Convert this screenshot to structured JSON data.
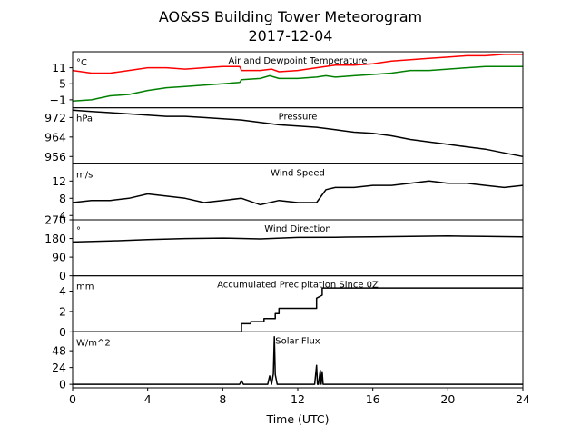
{
  "figure": {
    "title_line1": "AO&SS Building Tower Meteorogram",
    "title_line2": "2017-12-04",
    "xlabel": "Time (UTC)",
    "x_ticks": [
      "0",
      "4",
      "8",
      "12",
      "16",
      "20",
      "24"
    ]
  },
  "chart_data": [
    {
      "type": "line",
      "title": "Air and Dewpoint Temperature",
      "unit": "°C",
      "xlim": [
        0,
        24
      ],
      "ylim": [
        -4,
        17
      ],
      "y_ticks": [
        "−1",
        "5",
        "11"
      ],
      "y_tick_values": [
        -1,
        5,
        11
      ],
      "series": [
        {
          "color": "#ff0000",
          "x": [
            0,
            1,
            2,
            3,
            4,
            5,
            6,
            7,
            8,
            8.9,
            9,
            10,
            10.6,
            11,
            12,
            13,
            14,
            15,
            16,
            17,
            18,
            19,
            20,
            21,
            22,
            23,
            24
          ],
          "y": [
            10,
            9,
            9,
            10,
            11,
            11,
            10.5,
            11,
            11.5,
            11.5,
            10,
            10,
            10.5,
            9.5,
            10,
            11,
            12,
            12,
            12.5,
            13.5,
            14,
            14.5,
            15,
            15.5,
            15.5,
            16,
            16
          ]
        },
        {
          "color": "#008000",
          "x": [
            0,
            1,
            2,
            3,
            4,
            5,
            6,
            7,
            8,
            8.9,
            9,
            10,
            10.5,
            11,
            12,
            13,
            13.5,
            14,
            15,
            16,
            17,
            18,
            19,
            20,
            21,
            22,
            23,
            24
          ],
          "y": [
            -1.5,
            -1,
            0.5,
            1,
            2.5,
            3.5,
            4,
            4.5,
            5,
            5.5,
            6.5,
            7,
            8,
            7,
            7,
            7.5,
            8,
            7.5,
            8,
            8.5,
            9,
            10,
            10,
            10.5,
            11,
            11.5,
            11.5,
            11.5
          ]
        }
      ]
    },
    {
      "type": "line",
      "title": "Pressure",
      "unit": "hPa",
      "xlim": [
        0,
        24
      ],
      "ylim": [
        953,
        976
      ],
      "y_ticks": [
        "956",
        "964",
        "972"
      ],
      "y_tick_values": [
        956,
        964,
        972
      ],
      "series": [
        {
          "color": "#000000",
          "x": [
            0,
            1,
            2,
            3,
            4,
            5,
            6,
            7,
            8,
            9,
            10,
            11,
            12,
            13,
            14,
            15,
            16,
            17,
            18,
            19,
            20,
            21,
            22,
            23,
            24
          ],
          "y": [
            975,
            974.5,
            974,
            973.5,
            973,
            972.5,
            972.5,
            972,
            971.5,
            971,
            970,
            969,
            968.5,
            968,
            967,
            966,
            965.5,
            964.5,
            963,
            962,
            961,
            960,
            959,
            957.5,
            956
          ]
        }
      ]
    },
    {
      "type": "line",
      "title": "Wind Speed",
      "unit": "m/s",
      "xlim": [
        0,
        24
      ],
      "ylim": [
        3,
        16
      ],
      "y_ticks": [
        "4",
        "8",
        "12"
      ],
      "y_tick_values": [
        4,
        8,
        12
      ],
      "series": [
        {
          "color": "#000000",
          "x": [
            0,
            1,
            2,
            3,
            4,
            5,
            6,
            7,
            8,
            9,
            10,
            11,
            12,
            13,
            13.5,
            14,
            15,
            16,
            17,
            18,
            19,
            20,
            21,
            22,
            23,
            24
          ],
          "y": [
            7,
            7.5,
            7.5,
            8,
            9,
            8.5,
            8,
            7,
            7.5,
            8,
            6.5,
            7.5,
            7,
            7,
            10,
            10.5,
            10.5,
            11,
            11,
            11.5,
            12,
            11.5,
            11.5,
            11,
            10.5,
            11
          ]
        }
      ]
    },
    {
      "type": "line",
      "title": "Wind Direction",
      "unit": "°",
      "xlim": [
        0,
        24
      ],
      "ylim": [
        0,
        270
      ],
      "y_ticks": [
        "0",
        "90",
        "180",
        "270"
      ],
      "y_tick_values": [
        0,
        90,
        180,
        270
      ],
      "series": [
        {
          "color": "#000000",
          "x": [
            0,
            2,
            4,
            6,
            8,
            10,
            12,
            14,
            16,
            18,
            20,
            22,
            24
          ],
          "y": [
            163,
            168,
            175,
            180,
            182,
            178,
            185,
            186,
            188,
            190,
            192,
            190,
            188
          ]
        }
      ]
    },
    {
      "type": "line",
      "title": "Accumulated Precipitation Since 0Z",
      "unit": "mm",
      "xlim": [
        0,
        24
      ],
      "ylim": [
        0,
        5.5
      ],
      "y_ticks": [
        "0",
        "2",
        "4"
      ],
      "y_tick_values": [
        0,
        2,
        4
      ],
      "series": [
        {
          "color": "#000000",
          "x": [
            0,
            9,
            9,
            9.5,
            9.5,
            10.2,
            10.2,
            10.8,
            10.8,
            11,
            11,
            13,
            13,
            13.3,
            13.3,
            24
          ],
          "y": [
            0,
            0,
            0.8,
            0.8,
            1.0,
            1.0,
            1.3,
            1.3,
            1.8,
            1.8,
            2.3,
            2.3,
            3.3,
            3.6,
            4.3,
            4.3
          ]
        }
      ]
    },
    {
      "type": "line",
      "title": "Solar Flux",
      "unit": "W/m^2",
      "xlim": [
        0,
        24
      ],
      "ylim": [
        -5,
        75
      ],
      "y_ticks": [
        "0",
        "24",
        "48"
      ],
      "y_tick_values": [
        0,
        24,
        48
      ],
      "series": [
        {
          "color": "#000000",
          "x": [
            0,
            8.9,
            9.0,
            9.1,
            10.4,
            10.5,
            10.6,
            10.7,
            10.75,
            10.8,
            10.9,
            11.0,
            12.9,
            13.0,
            13.05,
            13.1,
            13.2,
            13.25,
            13.3,
            13.35,
            24
          ],
          "y": [
            0,
            0,
            5,
            0,
            0,
            12,
            0,
            15,
            68,
            14,
            0,
            0,
            0,
            27,
            0,
            0,
            20,
            0,
            18,
            0,
            0
          ]
        }
      ]
    }
  ]
}
